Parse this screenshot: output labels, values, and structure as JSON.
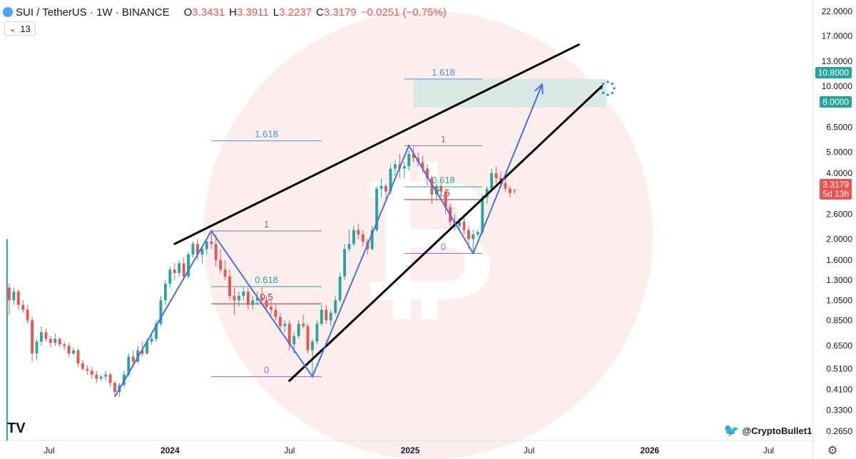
{
  "header": {
    "symbol": "SUI / TetherUS · 1W · BINANCE",
    "open_label": "O",
    "open": "3.3431",
    "high_label": "H",
    "high": "3.3911",
    "low_label": "L",
    "low": "3.2237",
    "close_label": "C",
    "close": "3.3179",
    "change": "−0.0251 (−0.75%)"
  },
  "indicator_badge": "13",
  "watermark_handle": "@CryptoBullet1",
  "colors": {
    "up": "#26a69a",
    "down": "#ef5350",
    "pattern": "#4472db",
    "wedge": "#000000",
    "target_zone": "#cfe6e2"
  },
  "price_axis": {
    "ticks": [
      "22.0000",
      "17.0000",
      "13.0000",
      "10.0000",
      "6.5000",
      "5.0000",
      "4.0000",
      "2.6000",
      "2.0000",
      "1.6000",
      "1.3000",
      "1.0500",
      "0.8500",
      "0.6500",
      "0.5100",
      "0.4100",
      "0.3300",
      "0.2650"
    ],
    "tag_target_high": "10.8000",
    "tag_target_low": "8.0000",
    "tag_last_price": "3.3179",
    "tag_countdown": "5d 13h"
  },
  "time_axis": {
    "ticks": [
      "Jul",
      "2024",
      "Jul",
      "2025",
      "Jul",
      "2026",
      "Jul"
    ]
  },
  "fib_labels": {
    "first": {
      "ext": "1.618",
      "top": "1",
      "mid": "0.618",
      "half": "0.5",
      "bottom": "0"
    },
    "second": {
      "ext": "1.618",
      "top": "1",
      "mid": "0.618",
      "half": "0.5",
      "bottom": "0"
    }
  },
  "chart_data": {
    "type": "candlestick",
    "scale": "log",
    "ylim": [
      0.24,
      23
    ],
    "xlim": [
      "2023-04-17",
      "2026-09-07"
    ],
    "key_levels": {
      "target_zone": [
        8.0,
        10.8
      ],
      "last_price": 3.3179
    },
    "candles": [
      [
        "2023-05-01",
        1.2,
        1.25,
        0.9,
        1.05
      ],
      [
        "2023-05-08",
        1.05,
        1.2,
        1.0,
        1.15
      ],
      [
        "2023-05-15",
        1.15,
        1.18,
        0.95,
        1.0
      ],
      [
        "2023-05-22",
        1.0,
        1.05,
        0.92,
        0.95
      ],
      [
        "2023-05-29",
        0.95,
        1.0,
        0.82,
        0.85
      ],
      [
        "2023-06-05",
        0.85,
        0.88,
        0.55,
        0.6
      ],
      [
        "2023-06-12",
        0.6,
        0.7,
        0.56,
        0.68
      ],
      [
        "2023-06-19",
        0.68,
        0.8,
        0.65,
        0.75
      ],
      [
        "2023-06-26",
        0.75,
        0.78,
        0.68,
        0.7
      ],
      [
        "2023-07-03",
        0.7,
        0.72,
        0.64,
        0.67
      ],
      [
        "2023-07-10",
        0.67,
        0.74,
        0.65,
        0.7
      ],
      [
        "2023-07-17",
        0.7,
        0.71,
        0.64,
        0.66
      ],
      [
        "2023-07-24",
        0.66,
        0.68,
        0.62,
        0.65
      ],
      [
        "2023-07-31",
        0.65,
        0.67,
        0.58,
        0.6
      ],
      [
        "2023-08-07",
        0.6,
        0.64,
        0.59,
        0.62
      ],
      [
        "2023-08-14",
        0.62,
        0.63,
        0.52,
        0.54
      ],
      [
        "2023-08-21",
        0.54,
        0.56,
        0.5,
        0.51
      ],
      [
        "2023-08-28",
        0.51,
        0.53,
        0.48,
        0.5
      ],
      [
        "2023-09-04",
        0.5,
        0.52,
        0.46,
        0.48
      ],
      [
        "2023-09-11",
        0.48,
        0.5,
        0.44,
        0.46
      ],
      [
        "2023-09-18",
        0.46,
        0.48,
        0.45,
        0.47
      ],
      [
        "2023-09-25",
        0.47,
        0.5,
        0.45,
        0.48
      ],
      [
        "2023-10-02",
        0.48,
        0.49,
        0.42,
        0.44
      ],
      [
        "2023-10-09",
        0.44,
        0.45,
        0.38,
        0.4
      ],
      [
        "2023-10-16",
        0.4,
        0.44,
        0.38,
        0.43
      ],
      [
        "2023-10-23",
        0.43,
        0.5,
        0.42,
        0.48
      ],
      [
        "2023-10-30",
        0.48,
        0.6,
        0.47,
        0.58
      ],
      [
        "2023-11-06",
        0.58,
        0.62,
        0.52,
        0.55
      ],
      [
        "2023-11-13",
        0.55,
        0.65,
        0.54,
        0.62
      ],
      [
        "2023-11-20",
        0.62,
        0.68,
        0.58,
        0.6
      ],
      [
        "2023-11-27",
        0.6,
        0.7,
        0.59,
        0.68
      ],
      [
        "2023-12-04",
        0.68,
        0.75,
        0.66,
        0.7
      ],
      [
        "2023-12-11",
        0.7,
        0.85,
        0.68,
        0.82
      ],
      [
        "2023-12-18",
        0.82,
        1.1,
        0.8,
        1.05
      ],
      [
        "2023-12-25",
        1.05,
        1.3,
        1.0,
        1.25
      ],
      [
        "2024-01-01",
        1.25,
        1.5,
        1.2,
        1.45
      ],
      [
        "2024-01-08",
        1.45,
        1.55,
        1.3,
        1.4
      ],
      [
        "2024-01-15",
        1.4,
        1.6,
        1.35,
        1.55
      ],
      [
        "2024-01-22",
        1.55,
        1.65,
        1.3,
        1.35
      ],
      [
        "2024-01-29",
        1.35,
        1.75,
        1.32,
        1.7
      ],
      [
        "2024-02-05",
        1.7,
        1.95,
        1.65,
        1.9
      ],
      [
        "2024-02-12",
        1.9,
        2.0,
        1.6,
        1.7
      ],
      [
        "2024-02-19",
        1.7,
        1.85,
        1.55,
        1.8
      ],
      [
        "2024-02-26",
        1.8,
        2.0,
        1.7,
        1.95
      ],
      [
        "2024-03-04",
        1.95,
        2.18,
        1.8,
        1.9
      ],
      [
        "2024-03-11",
        1.9,
        2.1,
        1.5,
        1.6
      ],
      [
        "2024-03-18",
        1.6,
        1.8,
        1.4,
        1.45
      ],
      [
        "2024-03-25",
        1.45,
        1.6,
        1.3,
        1.35
      ],
      [
        "2024-04-01",
        1.35,
        1.45,
        1.05,
        1.1
      ],
      [
        "2024-04-08",
        1.1,
        1.2,
        0.9,
        1.05
      ],
      [
        "2024-04-15",
        1.05,
        1.15,
        0.98,
        1.1
      ],
      [
        "2024-04-22",
        1.1,
        1.2,
        1.05,
        1.15
      ],
      [
        "2024-04-29",
        1.15,
        1.2,
        0.95,
        1.0
      ],
      [
        "2024-05-06",
        1.0,
        1.1,
        0.95,
        1.05
      ],
      [
        "2024-05-13",
        1.05,
        1.15,
        1.0,
        1.08
      ],
      [
        "2024-05-20",
        1.08,
        1.2,
        1.0,
        1.05
      ],
      [
        "2024-05-27",
        1.05,
        1.1,
        0.95,
        0.98
      ],
      [
        "2024-06-03",
        0.98,
        1.05,
        0.9,
        0.95
      ],
      [
        "2024-06-10",
        0.95,
        1.0,
        0.85,
        0.88
      ],
      [
        "2024-06-17",
        0.88,
        0.92,
        0.75,
        0.8
      ],
      [
        "2024-06-24",
        0.8,
        0.85,
        0.75,
        0.82
      ],
      [
        "2024-07-01",
        0.82,
        0.85,
        0.62,
        0.66
      ],
      [
        "2024-07-08",
        0.66,
        0.75,
        0.6,
        0.72
      ],
      [
        "2024-07-15",
        0.72,
        0.85,
        0.7,
        0.82
      ],
      [
        "2024-07-22",
        0.82,
        0.9,
        0.78,
        0.8
      ],
      [
        "2024-07-29",
        0.8,
        0.82,
        0.6,
        0.62
      ],
      [
        "2024-08-05",
        0.62,
        0.7,
        0.47,
        0.68
      ],
      [
        "2024-08-12",
        0.68,
        0.85,
        0.66,
        0.82
      ],
      [
        "2024-08-19",
        0.82,
        1.0,
        0.8,
        0.95
      ],
      [
        "2024-08-26",
        0.95,
        1.0,
        0.82,
        0.85
      ],
      [
        "2024-09-02",
        0.85,
        0.95,
        0.8,
        0.92
      ],
      [
        "2024-09-09",
        0.92,
        1.1,
        0.9,
        1.05
      ],
      [
        "2024-09-16",
        1.05,
        1.4,
        1.02,
        1.35
      ],
      [
        "2024-09-23",
        1.35,
        1.9,
        1.3,
        1.8
      ],
      [
        "2024-09-30",
        1.8,
        2.2,
        1.75,
        1.9
      ],
      [
        "2024-10-07",
        1.9,
        2.3,
        1.85,
        2.2
      ],
      [
        "2024-10-14",
        2.2,
        2.35,
        2.0,
        2.1
      ],
      [
        "2024-10-21",
        2.1,
        2.2,
        1.85,
        1.95
      ],
      [
        "2024-10-28",
        1.95,
        2.0,
        1.7,
        1.8
      ],
      [
        "2024-11-04",
        1.8,
        2.3,
        1.78,
        2.2
      ],
      [
        "2024-11-11",
        2.2,
        3.5,
        2.15,
        3.4
      ],
      [
        "2024-11-18",
        3.4,
        3.8,
        3.1,
        3.5
      ],
      [
        "2024-11-25",
        3.5,
        3.6,
        3.0,
        3.3
      ],
      [
        "2024-12-02",
        3.3,
        4.4,
        3.2,
        4.2
      ],
      [
        "2024-12-09",
        4.2,
        4.6,
        3.9,
        4.4
      ],
      [
        "2024-12-16",
        4.4,
        4.9,
        3.8,
        4.2
      ],
      [
        "2024-12-23",
        4.2,
        4.5,
        3.8,
        4.3
      ],
      [
        "2024-12-30",
        4.3,
        5.1,
        4.1,
        4.9
      ],
      [
        "2025-01-06",
        4.9,
        5.3,
        4.5,
        4.7
      ],
      [
        "2025-01-13",
        4.7,
        5.0,
        4.3,
        4.5
      ],
      [
        "2025-01-20",
        4.5,
        4.8,
        4.0,
        4.2
      ],
      [
        "2025-01-27",
        4.2,
        4.4,
        3.5,
        3.8
      ],
      [
        "2025-02-03",
        3.8,
        3.9,
        2.9,
        3.2
      ],
      [
        "2025-02-10",
        3.2,
        3.6,
        3.0,
        3.5
      ],
      [
        "2025-02-17",
        3.5,
        3.7,
        3.1,
        3.3
      ],
      [
        "2025-02-24",
        3.3,
        3.4,
        2.6,
        2.8
      ],
      [
        "2025-03-03",
        2.8,
        2.9,
        2.3,
        2.4
      ],
      [
        "2025-03-10",
        2.4,
        2.6,
        2.2,
        2.3
      ],
      [
        "2025-03-17",
        2.3,
        2.5,
        2.2,
        2.4
      ],
      [
        "2025-03-24",
        2.4,
        2.5,
        2.1,
        2.2
      ],
      [
        "2025-03-31",
        2.2,
        2.3,
        1.8,
        2.0
      ],
      [
        "2025-04-07",
        2.0,
        2.2,
        1.7,
        2.1
      ],
      [
        "2025-04-14",
        2.1,
        2.2,
        2.05,
        2.15
      ],
      [
        "2025-04-21",
        2.15,
        3.2,
        2.1,
        3.1
      ],
      [
        "2025-04-28",
        3.1,
        3.5,
        2.9,
        3.4
      ],
      [
        "2025-05-05",
        3.4,
        4.2,
        3.3,
        4.0
      ],
      [
        "2025-05-12",
        4.0,
        4.3,
        3.6,
        3.8
      ],
      [
        "2025-05-19",
        3.8,
        4.1,
        3.5,
        3.6
      ],
      [
        "2025-05-26",
        3.6,
        3.8,
        3.3,
        3.4
      ],
      [
        "2025-06-02",
        3.4,
        3.5,
        3.1,
        3.25
      ],
      [
        "2025-06-09",
        3.343,
        3.391,
        3.224,
        3.318
      ]
    ],
    "blue_path": [
      [
        "2023-10-09",
        0.38
      ],
      [
        "2024-03-04",
        2.18
      ],
      [
        "2024-08-05",
        0.47
      ],
      [
        "2024-12-30",
        5.35
      ],
      [
        "2025-04-07",
        1.72
      ],
      [
        "2025-07-21",
        10.2
      ]
    ],
    "wedge_upper": [
      [
        "2024-01-08",
        1.9
      ],
      [
        "2025-09-15",
        15.5
      ]
    ],
    "wedge_lower": [
      [
        "2024-07-01",
        0.45
      ],
      [
        "2025-10-20",
        10.0
      ]
    ]
  }
}
